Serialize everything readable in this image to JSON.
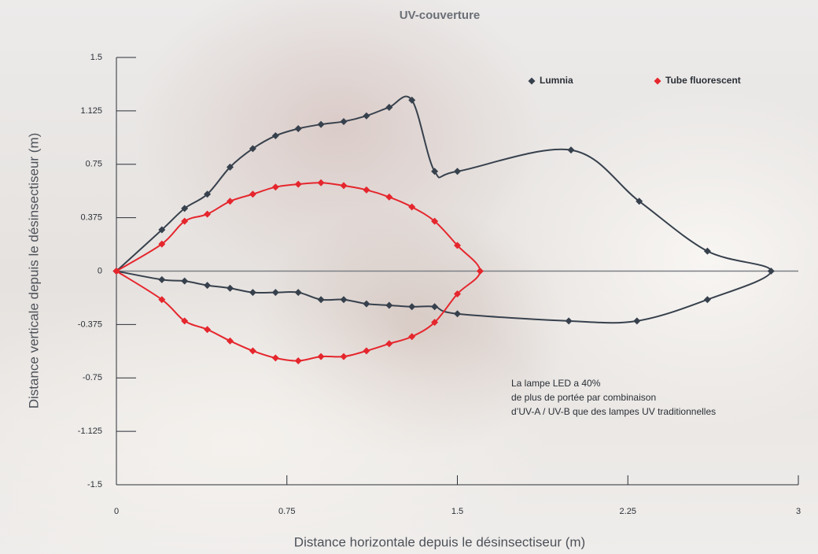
{
  "chart_data": {
    "type": "line",
    "title": "UV-couverture",
    "x_label": "Distance horizontale depuis le désinsectiseur (m)",
    "y_label": "Distance verticale depuis le désinsectiseur (m)",
    "annotation": [
      "La lampe LED a 40%",
      "de plus de portée par combinaison",
      "d’UV-A / UV-B que des lampes UV traditionnelles"
    ],
    "xlim": [
      0,
      3
    ],
    "xticks": [
      0,
      0.75,
      1.5,
      2.25,
      3
    ],
    "ylim": [
      -1.5,
      1.5
    ],
    "yticks": [
      1.5,
      1.125,
      0.75,
      0.375,
      0,
      -0.375,
      -0.75,
      -1.125,
      -1.5
    ],
    "legend": "top-right",
    "series": [
      {
        "name": "Lumnia",
        "color": "#37414d",
        "x": [
          0,
          0.2,
          0.3,
          0.4,
          0.5,
          0.6,
          0.7,
          0.8,
          0.9,
          1.0,
          1.1,
          1.2,
          1.3,
          1.4,
          1.5,
          2.0,
          2.3,
          2.6,
          2.88,
          2.6,
          2.29,
          1.99,
          1.5,
          1.4,
          1.3,
          1.2,
          1.1,
          1.0,
          0.9,
          0.8,
          0.7,
          0.6,
          0.5,
          0.4,
          0.3,
          0.2,
          0
        ],
        "values": [
          0,
          0.29,
          0.44,
          0.54,
          0.73,
          0.86,
          0.95,
          1.0,
          1.03,
          1.05,
          1.09,
          1.15,
          1.2,
          0.7,
          0.7,
          0.85,
          0.49,
          0.14,
          0,
          -0.2,
          -0.35,
          -0.35,
          -0.3,
          -0.25,
          -0.25,
          -0.24,
          -0.23,
          -0.2,
          -0.2,
          -0.15,
          -0.15,
          -0.15,
          -0.12,
          -0.1,
          -0.07,
          -0.06,
          0
        ]
      },
      {
        "name": "Tube fluorescent",
        "color": "#e5262d",
        "x": [
          0,
          0.2,
          0.3,
          0.4,
          0.5,
          0.6,
          0.7,
          0.8,
          0.9,
          1.0,
          1.1,
          1.2,
          1.3,
          1.4,
          1.5,
          1.6,
          1.5,
          1.4,
          1.3,
          1.2,
          1.1,
          1.0,
          0.9,
          0.8,
          0.7,
          0.6,
          0.5,
          0.4,
          0.3,
          0.2,
          0
        ],
        "values": [
          0,
          0.19,
          0.35,
          0.4,
          0.49,
          0.54,
          0.59,
          0.61,
          0.62,
          0.6,
          0.57,
          0.52,
          0.45,
          0.35,
          0.18,
          0,
          -0.16,
          -0.36,
          -0.46,
          -0.51,
          -0.56,
          -0.6,
          -0.6,
          -0.63,
          -0.61,
          -0.56,
          -0.49,
          -0.41,
          -0.35,
          -0.2,
          0
        ]
      }
    ]
  }
}
